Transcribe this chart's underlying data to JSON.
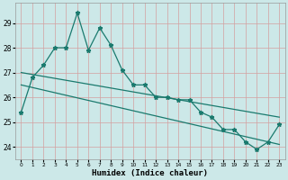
{
  "xlabel": "Humidex (Indice chaleur)",
  "bg_color": "#cce8e8",
  "grid_color_major": "#d4a0a0",
  "line_color": "#1a7a6e",
  "x_values": [
    0,
    1,
    2,
    3,
    4,
    5,
    6,
    7,
    8,
    9,
    10,
    11,
    12,
    13,
    14,
    15,
    16,
    17,
    18,
    19,
    20,
    21,
    22,
    23
  ],
  "y_main": [
    25.4,
    26.8,
    27.3,
    28.0,
    28.0,
    29.4,
    27.9,
    28.8,
    28.1,
    27.1,
    26.5,
    26.5,
    26.0,
    26.0,
    25.9,
    25.9,
    25.4,
    25.2,
    24.7,
    24.7,
    24.2,
    23.9,
    24.2,
    24.9
  ],
  "trend1_x": [
    0,
    23
  ],
  "trend1_y": [
    27.0,
    25.2
  ],
  "trend2_x": [
    0,
    23
  ],
  "trend2_y": [
    26.5,
    24.1
  ],
  "ylim": [
    23.5,
    29.8
  ],
  "xlim": [
    -0.5,
    23.5
  ],
  "yticks": [
    24,
    25,
    26,
    27,
    28,
    29
  ],
  "xticks": [
    0,
    1,
    2,
    3,
    4,
    5,
    6,
    7,
    8,
    9,
    10,
    11,
    12,
    13,
    14,
    15,
    16,
    17,
    18,
    19,
    20,
    21,
    22,
    23
  ]
}
